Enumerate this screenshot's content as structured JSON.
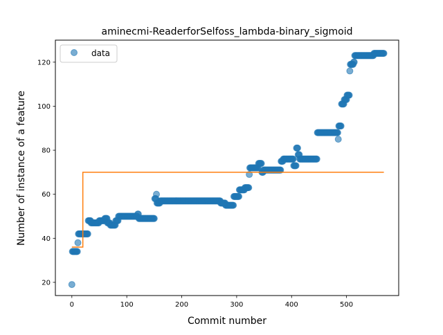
{
  "chart_data": {
    "type": "scatter",
    "title": "aminecmi-ReaderforSelfoss_lambda-binary_sigmoid",
    "xlabel": "Commit number",
    "ylabel": "Number of instance of a feature",
    "xlim": [
      -30,
      595
    ],
    "ylim": [
      14,
      130
    ],
    "xticks": [
      0,
      100,
      200,
      300,
      400,
      500
    ],
    "yticks": [
      20,
      40,
      60,
      80,
      100,
      120
    ],
    "grid": false,
    "legend": {
      "position": "upper left",
      "entries": [
        "data"
      ]
    },
    "colors": {
      "data": "#1f77b4",
      "fit": "#ff7f0e"
    },
    "series": [
      {
        "name": "data",
        "kind": "scatter",
        "segments": [
          [
            0,
            0,
            19
          ],
          [
            1,
            3,
            34
          ],
          [
            4,
            10,
            34
          ],
          [
            11,
            11,
            38
          ],
          [
            12,
            29,
            42
          ],
          [
            30,
            34,
            48
          ],
          [
            35,
            38,
            47
          ],
          [
            39,
            44,
            47
          ],
          [
            45,
            49,
            47
          ],
          [
            50,
            54,
            48
          ],
          [
            55,
            59,
            48
          ],
          [
            60,
            64,
            49
          ],
          [
            65,
            69,
            47
          ],
          [
            70,
            74,
            46
          ],
          [
            75,
            79,
            46
          ],
          [
            80,
            84,
            48
          ],
          [
            85,
            119,
            50
          ],
          [
            120,
            121,
            51
          ],
          [
            122,
            150,
            49
          ],
          [
            151,
            152,
            58
          ],
          [
            153,
            153,
            58
          ],
          [
            154,
            154,
            60
          ],
          [
            155,
            160,
            56
          ],
          [
            161,
            170,
            57
          ],
          [
            171,
            270,
            57
          ],
          [
            271,
            279,
            56
          ],
          [
            280,
            294,
            55
          ],
          [
            295,
            304,
            59
          ],
          [
            305,
            314,
            62
          ],
          [
            315,
            319,
            63
          ],
          [
            320,
            322,
            63
          ],
          [
            323,
            323,
            69
          ],
          [
            324,
            339,
            72
          ],
          [
            340,
            345,
            74
          ],
          [
            346,
            348,
            70
          ],
          [
            349,
            380,
            71
          ],
          [
            381,
            384,
            75
          ],
          [
            385,
            403,
            76
          ],
          [
            404,
            408,
            73
          ],
          [
            409,
            411,
            81
          ],
          [
            412,
            414,
            78
          ],
          [
            415,
            446,
            76
          ],
          [
            447,
            484,
            88
          ],
          [
            485,
            485,
            85
          ],
          [
            486,
            490,
            91
          ],
          [
            491,
            495,
            101
          ],
          [
            496,
            500,
            103
          ],
          [
            501,
            505,
            105
          ],
          [
            506,
            506,
            116
          ],
          [
            507,
            512,
            119
          ],
          [
            513,
            514,
            120
          ],
          [
            515,
            549,
            123
          ],
          [
            550,
            568,
            124
          ]
        ]
      },
      {
        "name": "",
        "kind": "step-line",
        "points": [
          [
            0,
            36
          ],
          [
            20,
            36
          ],
          [
            20,
            70
          ],
          [
            568,
            70
          ]
        ]
      }
    ]
  }
}
